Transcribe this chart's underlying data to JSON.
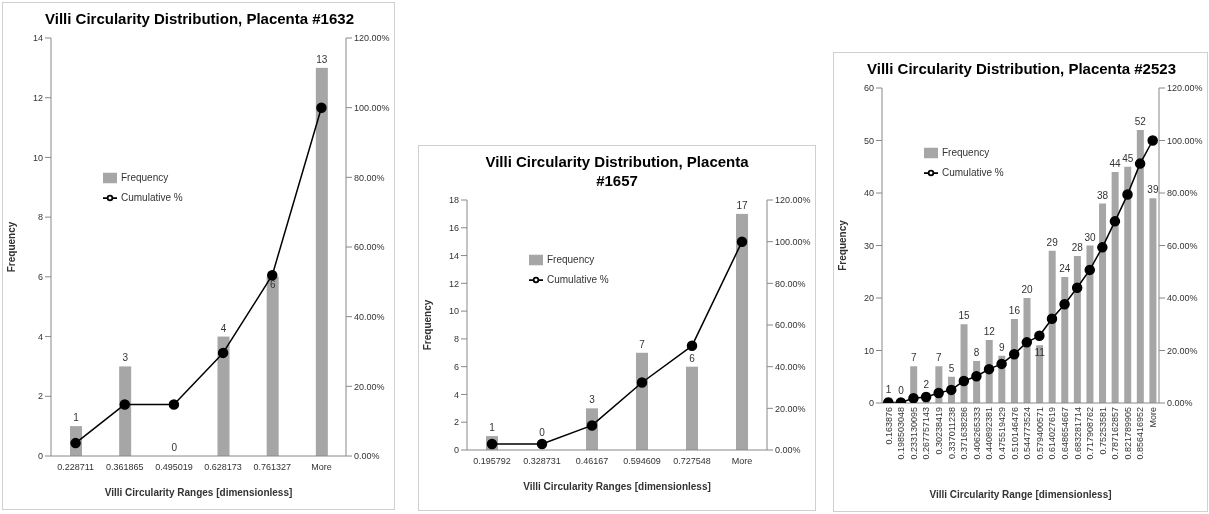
{
  "chart_data": [
    {
      "type": "bar",
      "title": "Villi Circularity Distribution, Placenta #1632",
      "xlabel": "Villi Circularity Ranges [dimensionless]",
      "ylabel": "Frequency",
      "categories": [
        "0.228711",
        "0.361865",
        "0.495019",
        "0.628173",
        "0.761327",
        "More"
      ],
      "series": [
        {
          "name": "Frequency",
          "type": "bar",
          "color": "#a6a6a6",
          "values": [
            1,
            3,
            0,
            4,
            6,
            13
          ],
          "value_labels": [
            "1",
            "3",
            "0",
            "4",
            "6",
            "13"
          ]
        },
        {
          "name": "Cumulative %",
          "type": "line",
          "axis": "y2",
          "color": "#000000",
          "values": [
            3.7,
            14.8,
            14.8,
            29.6,
            51.9,
            100
          ]
        }
      ],
      "ylim": [
        0,
        14
      ],
      "yticks": [
        0,
        2,
        4,
        6,
        8,
        10,
        12,
        14
      ],
      "y2lim": [
        0,
        120
      ],
      "y2ticks": [
        {
          "value": 0,
          "label": "0.00%"
        },
        {
          "value": 20,
          "label": "20.00%"
        },
        {
          "value": 40,
          "label": "40.00%"
        },
        {
          "value": 60,
          "label": "60.00%"
        },
        {
          "value": 80,
          "label": "80.00%"
        },
        {
          "value": 100,
          "label": "100.00%"
        },
        {
          "value": 120,
          "label": "120.00%"
        }
      ],
      "legend": "top left",
      "marker": "circle",
      "grid": false
    },
    {
      "type": "bar",
      "title": "Villi Circularity Distribution, Placenta #1657",
      "xlabel": "Villi Circularity Ranges [dimensionless]",
      "ylabel": "Frequency",
      "categories": [
        "0.195792",
        "0.328731",
        "0.46167",
        "0.594609",
        "0.727548",
        "More"
      ],
      "series": [
        {
          "name": "Frequency",
          "type": "bar",
          "color": "#a6a6a6",
          "values": [
            1,
            0,
            3,
            7,
            6,
            17
          ],
          "value_labels": [
            "1",
            "0",
            "3",
            "7",
            "6",
            "17"
          ]
        },
        {
          "name": "Cumulative %",
          "type": "line",
          "axis": "y2",
          "color": "#000000",
          "values": [
            2.9,
            2.9,
            11.8,
            32.4,
            50,
            100
          ]
        }
      ],
      "ylim": [
        0,
        18
      ],
      "yticks": [
        0,
        2,
        4,
        6,
        8,
        10,
        12,
        14,
        16,
        18
      ],
      "y2lim": [
        0,
        120
      ],
      "y2ticks": [
        {
          "value": 0,
          "label": "0.00%"
        },
        {
          "value": 20,
          "label": "20.00%"
        },
        {
          "value": 40,
          "label": "40.00%"
        },
        {
          "value": 60,
          "label": "60.00%"
        },
        {
          "value": 80,
          "label": "80.00%"
        },
        {
          "value": 100,
          "label": "100.00%"
        },
        {
          "value": 120,
          "label": "120.00%"
        }
      ],
      "legend": "top left",
      "marker": "circle",
      "grid": false
    },
    {
      "type": "bar",
      "title": "Villi Circularity Distribution, Placenta #2523",
      "xlabel": "Villi Circularity Range [dimensionless]",
      "ylabel": "Frequency",
      "categories": [
        "0.163876",
        "0.198503048",
        "0.233130095",
        "0.267757143",
        "0.30238419",
        "0.337011238",
        "0.371638286",
        "0.406265333",
        "0.440892381",
        "0.475519429",
        "0.510146476",
        "0.544773524",
        "0.579400571",
        "0.614027619",
        "0.648654667",
        "0.683281714",
        "0.717908762",
        "0.75253581",
        "0.787162857",
        "0.821789905",
        "0.856416952",
        "More"
      ],
      "series": [
        {
          "name": "Frequency",
          "type": "bar",
          "color": "#a6a6a6",
          "values": [
            1,
            0,
            7,
            2,
            7,
            5,
            15,
            8,
            12,
            9,
            16,
            20,
            11,
            29,
            24,
            28,
            30,
            38,
            44,
            45,
            52,
            39
          ],
          "value_labels": [
            "1",
            "0",
            "7",
            "2",
            "7",
            "5",
            "15",
            "8",
            "12",
            "9",
            "16",
            "20",
            "11",
            "29",
            "24",
            "28",
            "30",
            "38",
            "44",
            "45",
            "52",
            "39"
          ]
        },
        {
          "name": "Cumulative %",
          "type": "line",
          "axis": "y2",
          "color": "#000000",
          "values": [
            0.2,
            0.2,
            1.8,
            2.3,
            3.8,
            5.0,
            8.4,
            10.2,
            12.9,
            14.9,
            18.6,
            23.1,
            25.6,
            32.1,
            37.6,
            43.9,
            50.7,
            59.3,
            69.2,
            79.4,
            91.2,
            100
          ]
        }
      ],
      "ylim": [
        0,
        60
      ],
      "yticks": [
        0,
        10,
        20,
        30,
        40,
        50,
        60
      ],
      "y2lim": [
        0,
        120
      ],
      "y2ticks": [
        {
          "value": 0,
          "label": "0.00%"
        },
        {
          "value": 20,
          "label": "20.00%"
        },
        {
          "value": 40,
          "label": "40.00%"
        },
        {
          "value": 60,
          "label": "60.00%"
        },
        {
          "value": 80,
          "label": "80.00%"
        },
        {
          "value": 100,
          "label": "100.00%"
        },
        {
          "value": 120,
          "label": "120.00%"
        }
      ],
      "legend": "top left",
      "marker": "circle",
      "grid": false
    }
  ]
}
